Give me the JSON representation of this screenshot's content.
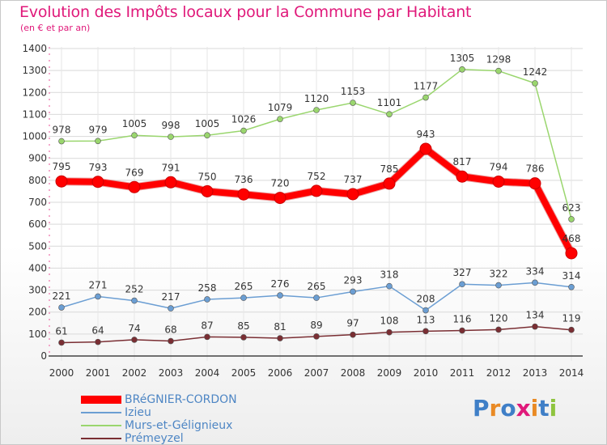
{
  "header": {
    "title": "Evolution des Impôts locaux pour la Commune par Habitant",
    "subtitle": "(en € et par an)"
  },
  "logo": {
    "text": "Proxiti",
    "colors": [
      "#3f7fc7",
      "#e98a25",
      "#3f7fc7",
      "#e0197a",
      "#e98a25",
      "#3f7fc7",
      "#8fc43f"
    ]
  },
  "chart_data": {
    "type": "line",
    "title": "Evolution des Impôts locaux pour la Commune par Habitant",
    "subtitle": "(en € et par an)",
    "xlabel": "",
    "ylabel": "",
    "ylim": [
      0,
      1400
    ],
    "yticks": [
      0,
      100,
      200,
      300,
      400,
      500,
      600,
      700,
      800,
      900,
      1000,
      1100,
      1200,
      1300,
      1400
    ],
    "grid": true,
    "legend_position": "bottom-left",
    "categories": [
      "2000",
      "2001",
      "2002",
      "2003",
      "2004",
      "2005",
      "2006",
      "2007",
      "2008",
      "2009",
      "2010",
      "2011",
      "2012",
      "2013",
      "2014"
    ],
    "series": [
      {
        "name": "BRéGNIER-CORDON",
        "color": "#ff0000",
        "width": 8,
        "values": [
          795,
          793,
          769,
          791,
          750,
          736,
          720,
          752,
          737,
          785,
          943,
          817,
          794,
          786,
          468
        ]
      },
      {
        "name": "Izieu",
        "color": "#6b9ed3",
        "width": 1.5,
        "values": [
          221,
          271,
          252,
          217,
          258,
          265,
          276,
          265,
          293,
          318,
          208,
          327,
          322,
          334,
          314
        ]
      },
      {
        "name": "Murs-et-Gélignieux",
        "color": "#9ad66e",
        "width": 1.5,
        "values": [
          978,
          979,
          1005,
          998,
          1005,
          1026,
          1079,
          1120,
          1153,
          1101,
          1177,
          1305,
          1298,
          1242,
          623
        ]
      },
      {
        "name": "Prémeyzel",
        "color": "#7a2e33",
        "width": 1.5,
        "values": [
          61,
          64,
          74,
          68,
          87,
          85,
          81,
          89,
          97,
          108,
          113,
          116,
          120,
          134,
          119
        ]
      }
    ]
  }
}
